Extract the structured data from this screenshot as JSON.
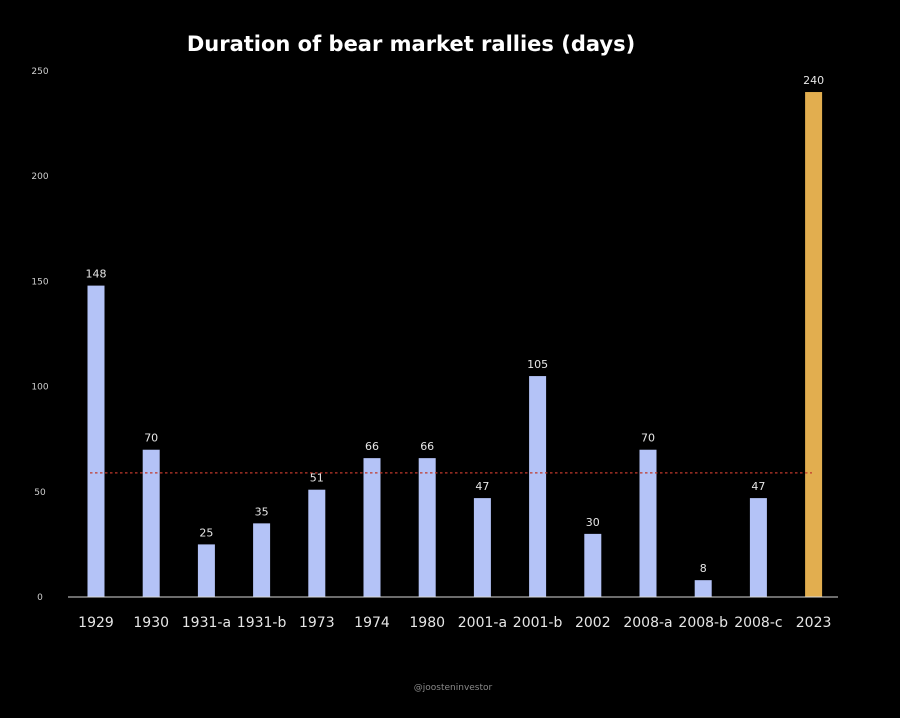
{
  "chart_data": {
    "type": "bar",
    "title": "Duration of bear market rallies (days)",
    "xlabel": "",
    "ylabel": "",
    "categories": [
      "1929",
      "1930",
      "1931-a",
      "1931-b",
      "1973",
      "1974",
      "1980",
      "2001-a",
      "2001-b",
      "2002",
      "2008-a",
      "2008-b",
      "2008-c",
      "2023"
    ],
    "values": [
      148,
      70,
      25,
      35,
      51,
      66,
      66,
      47,
      105,
      30,
      70,
      8,
      47,
      240
    ],
    "ylim": [
      0,
      250
    ],
    "yticks": [
      "0",
      "50",
      "100",
      "150",
      "200",
      "250"
    ],
    "reference_line": {
      "value": 59,
      "style": "dashed",
      "color": "#c0392b"
    },
    "colors": {
      "default": "#b4c3f7",
      "highlight": "#e2ae4f",
      "background": "#000000"
    },
    "highlight_category": "2023",
    "grid": false,
    "legend": "none"
  },
  "watermark": "@joosteninvestor"
}
